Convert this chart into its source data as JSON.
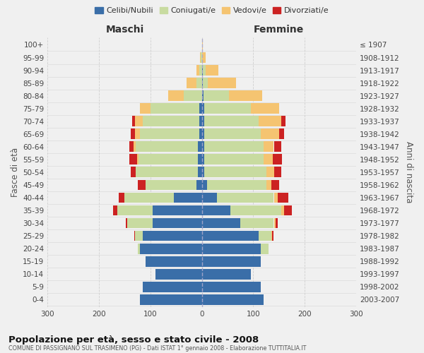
{
  "age_groups": [
    "0-4",
    "5-9",
    "10-14",
    "15-19",
    "20-24",
    "25-29",
    "30-34",
    "35-39",
    "40-44",
    "45-49",
    "50-54",
    "55-59",
    "60-64",
    "65-69",
    "70-74",
    "75-79",
    "80-84",
    "85-89",
    "90-94",
    "95-99",
    "100+"
  ],
  "birth_years": [
    "2003-2007",
    "1998-2002",
    "1993-1997",
    "1988-1992",
    "1983-1987",
    "1978-1982",
    "1973-1977",
    "1968-1972",
    "1963-1967",
    "1958-1962",
    "1953-1957",
    "1948-1952",
    "1943-1947",
    "1938-1942",
    "1933-1937",
    "1928-1932",
    "1923-1927",
    "1918-1922",
    "1913-1917",
    "1908-1912",
    "≤ 1907"
  ],
  "males": {
    "celibi": [
      120,
      115,
      90,
      110,
      120,
      115,
      95,
      95,
      55,
      10,
      8,
      8,
      8,
      5,
      5,
      5,
      0,
      0,
      0,
      0,
      0
    ],
    "coniugati": [
      0,
      0,
      0,
      0,
      5,
      15,
      50,
      70,
      95,
      100,
      120,
      115,
      120,
      115,
      110,
      95,
      35,
      10,
      5,
      2,
      0
    ],
    "vedovi": [
      0,
      0,
      0,
      0,
      0,
      0,
      0,
      0,
      0,
      0,
      0,
      3,
      5,
      10,
      15,
      20,
      30,
      20,
      5,
      2,
      0
    ],
    "divorziati": [
      0,
      0,
      0,
      0,
      0,
      2,
      3,
      8,
      12,
      15,
      10,
      15,
      8,
      8,
      5,
      0,
      0,
      0,
      0,
      0,
      0
    ]
  },
  "females": {
    "celibi": [
      120,
      115,
      95,
      115,
      115,
      110,
      75,
      55,
      30,
      10,
      5,
      5,
      5,
      5,
      5,
      5,
      3,
      2,
      2,
      0,
      0
    ],
    "coniugati": [
      0,
      0,
      0,
      0,
      15,
      25,
      65,
      100,
      110,
      115,
      120,
      115,
      115,
      110,
      105,
      90,
      50,
      10,
      5,
      0,
      0
    ],
    "vedovi": [
      0,
      0,
      0,
      0,
      0,
      2,
      3,
      5,
      8,
      10,
      15,
      18,
      20,
      35,
      45,
      55,
      65,
      55,
      25,
      8,
      2
    ],
    "divorziati": [
      0,
      0,
      0,
      0,
      0,
      2,
      5,
      15,
      20,
      15,
      15,
      18,
      15,
      10,
      8,
      0,
      0,
      0,
      0,
      0,
      0
    ]
  },
  "colors": {
    "celibi": "#3a6ea8",
    "coniugati": "#c8dba0",
    "vedovi": "#f5c471",
    "divorziati": "#cc2222"
  },
  "legend_labels": [
    "Celibi/Nubili",
    "Coniugati/e",
    "Vedovi/e",
    "Divorziati/e"
  ],
  "xlabel_left": "Maschi",
  "xlabel_right": "Femmine",
  "ylabel_left": "Fasce di età",
  "ylabel_right": "Anni di nascita",
  "title": "Popolazione per età, sesso e stato civile - 2008",
  "subtitle": "COMUNE DI PASSIGNANO SUL TRASIMENO (PG) - Dati ISTAT 1° gennaio 2008 - Elaborazione TUTTITALIA.IT",
  "xlim": 300,
  "bg_color": "#f0f0f0",
  "grid_color": "#cccccc"
}
